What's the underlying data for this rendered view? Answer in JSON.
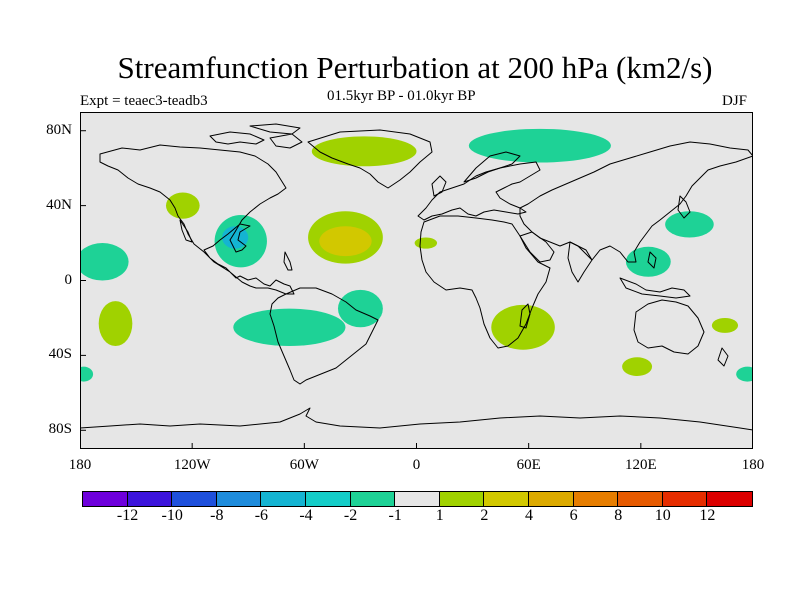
{
  "title": "Streamfunction Perturbation at 200 hPa (km2/s)",
  "experiment": "Expt = teaec3-teadb3",
  "period": "01.5kyr BP - 01.0kyr BP",
  "season": "DJF",
  "map": {
    "projection": "cylindrical equidistant",
    "lon_range": [
      -180,
      180
    ],
    "lat_range": [
      -90,
      90
    ],
    "ocean_fill": "#e6e6e6",
    "coast_color": "#000000",
    "x_ticks": [
      {
        "lon": -180,
        "label": "180"
      },
      {
        "lon": -120,
        "label": "120W"
      },
      {
        "lon": -60,
        "label": "60W"
      },
      {
        "lon": 0,
        "label": "0"
      },
      {
        "lon": 60,
        "label": "60E"
      },
      {
        "lon": 120,
        "label": "120E"
      },
      {
        "lon": 180,
        "label": "180"
      }
    ],
    "y_ticks": [
      {
        "lat": 80,
        "label": "80N"
      },
      {
        "lat": 40,
        "label": "40N"
      },
      {
        "lat": 0,
        "label": "0"
      },
      {
        "lat": -40,
        "label": "40S"
      },
      {
        "lat": -80,
        "label": "80S"
      }
    ]
  },
  "anomalies": [
    {
      "name": "north-atlantic-1",
      "lon": -38,
      "lat": 23,
      "rlon": 20,
      "rlat": 14,
      "level": 2
    },
    {
      "name": "north-atlantic-2",
      "lon": -38,
      "lat": 21,
      "rlon": 14,
      "rlat": 8,
      "level": 4
    },
    {
      "name": "greenland",
      "lon": -28,
      "lat": 69,
      "rlon": 28,
      "rlat": 8,
      "level": 2
    },
    {
      "name": "siberia",
      "lon": 66,
      "lat": 72,
      "rlon": 38,
      "rlat": 9,
      "level": -2
    },
    {
      "name": "central-america-1",
      "lon": -94,
      "lat": 21,
      "rlon": 14,
      "rlat": 14,
      "level": -2
    },
    {
      "name": "central-america-2",
      "lon": -97,
      "lat": 23,
      "rlon": 7,
      "rlat": 6,
      "level": -4
    },
    {
      "name": "west-pacific-n",
      "lon": -168,
      "lat": 10,
      "rlon": 14,
      "rlat": 10,
      "level": -2
    },
    {
      "name": "ne-pacific",
      "lon": -125,
      "lat": 40,
      "rlon": 9,
      "rlat": 7,
      "level": 2
    },
    {
      "name": "south-pacific",
      "lon": -161,
      "lat": -23,
      "rlon": 9,
      "rlat": 12,
      "level": 2
    },
    {
      "name": "south-america",
      "lon": -68,
      "lat": -25,
      "rlon": 30,
      "rlat": 10,
      "level": -2
    },
    {
      "name": "south-atlantic",
      "lon": -30,
      "lat": -15,
      "rlon": 12,
      "rlat": 10,
      "level": -2
    },
    {
      "name": "north-africa",
      "lon": 5,
      "lat": 20,
      "rlon": 6,
      "rlat": 3,
      "level": 2
    },
    {
      "name": "madagascar",
      "lon": 57,
      "lat": -25,
      "rlon": 17,
      "rlat": 12,
      "level": 2
    },
    {
      "name": "japan",
      "lon": 146,
      "lat": 30,
      "rlon": 13,
      "rlat": 7,
      "level": -2
    },
    {
      "name": "philippines",
      "lon": 124,
      "lat": 10,
      "rlon": 12,
      "rlat": 8,
      "level": -2
    },
    {
      "name": "south-indian",
      "lon": 118,
      "lat": -46,
      "rlon": 8,
      "rlat": 5,
      "level": 2
    },
    {
      "name": "new-zealand",
      "lon": 165,
      "lat": -24,
      "rlon": 7,
      "rlat": 4,
      "level": 2
    },
    {
      "name": "tasman-east",
      "lon": 177,
      "lat": -50,
      "rlon": 6,
      "rlat": 4,
      "level": -2
    },
    {
      "name": "dateline-west",
      "lon": -178,
      "lat": -50,
      "rlon": 5,
      "rlat": 4,
      "level": -2
    }
  ],
  "legend": {
    "colors": [
      "#6e00dc",
      "#3c14dc",
      "#1e50dc",
      "#1e8cdc",
      "#14b4d2",
      "#14cdc8",
      "#1ed296",
      "#e6e6e6",
      "#a0d200",
      "#d2c800",
      "#dcaa00",
      "#e67d00",
      "#e65a00",
      "#e62d00",
      "#dc0000"
    ],
    "labels": [
      "-12",
      "-10",
      "-8",
      "-6",
      "-4",
      "-2",
      "-1",
      "1",
      "2",
      "4",
      "6",
      "8",
      "10",
      "12"
    ]
  },
  "level_colors": {
    "-4": "#14b4d2",
    "-2": "#1ed296",
    "2": "#a0d200",
    "4": "#d2c800"
  }
}
